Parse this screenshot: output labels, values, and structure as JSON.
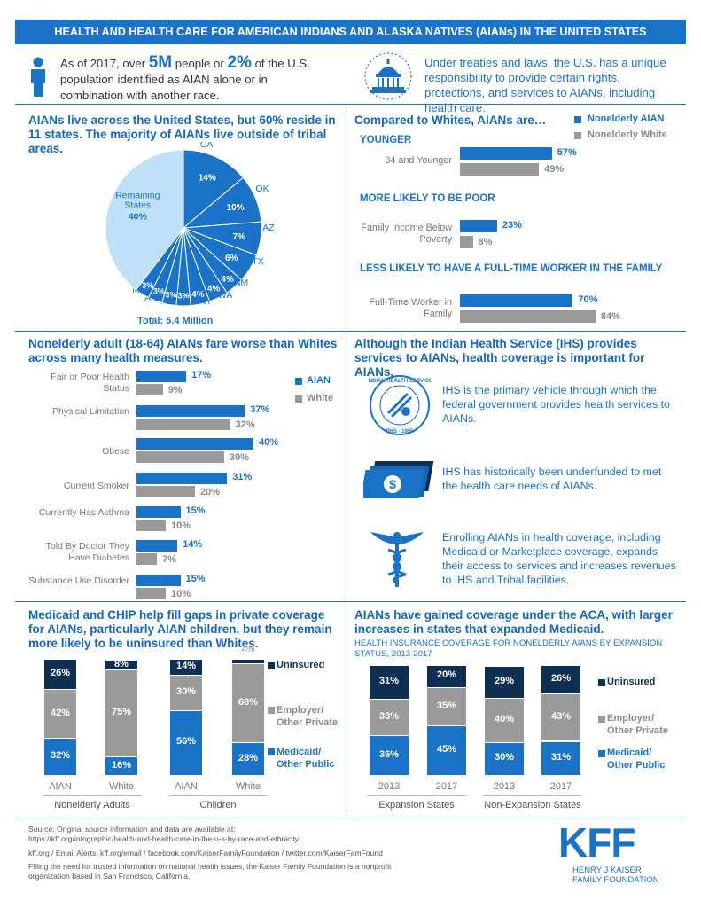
{
  "header": {
    "title": "HEALTH AND HEALTH CARE FOR AMERICAN INDIANS AND ALASKA NATIVES (AIANs) IN THE UNITED STATES"
  },
  "intro": {
    "left": {
      "prefix": "As of 2017, over ",
      "num1": "5M",
      "mid": " people or ",
      "num2": "2%",
      "suffix": " of the U.S. population identified as AIAN alone or in combination with another race."
    },
    "right": "Under treaties and laws, the U.S. has a unique responsibility to provide certain rights, protections, and services to AIANs, including health care."
  },
  "colors": {
    "aian": "#1a73c6",
    "white": "#9a9a9a",
    "light": "#bfe0f7",
    "navy": "#0c2f52"
  },
  "sections": {
    "states_title": "AIANs live across the United States, but 60% reside in 11 states. The majority of AIANs live outside of tribal areas.",
    "compare_title": "Compared to Whites, AIANs are…",
    "health_title": "Nonelderly adult (18-64) AIANs fare worse than Whites across many health measures.",
    "ihs_title": "Although the Indian Health Service (IHS) provides services to AIANs, health coverage is important for AIANs.",
    "medicaid_title": "Medicaid and CHIP help fill gaps in private coverage for AIANs, particularly AIAN children, but they remain more likely to be uninsured than Whites.",
    "aca_title": "AIANs have gained coverage under the ACA, with larger increases in states that expanded Medicaid.",
    "aca_subtitle": "HEALTH INSURANCE COVERAGE FOR NONELDERLY AIANS BY EXPANSION STATUS, 2013-2017"
  },
  "legends": {
    "nonelderly_aian": "Nonelderly AIAN",
    "nonelderly_white": "Nonelderly White",
    "aian": "AIAN",
    "white": "White",
    "uninsured": "Uninsured",
    "employer": "Employer/ Other Private",
    "medicaid": "Medicaid/ Other Public"
  },
  "compare_groups": [
    {
      "heading": "YOUNGER",
      "label": "34 and Younger"
    },
    {
      "heading": "MORE LIKELY TO BE POOR",
      "label": "Family Income Below Poverty"
    },
    {
      "heading": "LESS LIKELY TO HAVE A FULL-TIME WORKER IN THE FAMILY",
      "label": "Full-Time Worker in Family"
    }
  ],
  "health_measures": [
    "Fair or Poor Health Status",
    "Physical Limitation",
    "Obese",
    "Current Smoker",
    "Currently Has Asthma",
    "Told By Doctor They Have Diabetes",
    "Substance Use Disorder"
  ],
  "ihs_items": [
    "IHS is the primary vehicle through which the federal government provides health services to AIANs.",
    "IHS has historically been underfunded to met the health care needs of AIANs.",
    "Enrolling AIANs in health coverage, including Medicaid or Marketplace coverage, expands their access to services and increases revenues to IHS and Tribal facilities."
  ],
  "group_labels": {
    "nonelderly_adults": "Nonelderly Adults",
    "children": "Children",
    "expansion": "Expansion States",
    "non_expansion": "Non-Expansion States"
  },
  "footer": {
    "source1": "Source: Original source information and data are available at:",
    "source2": "https://kff.org/infographic/health-and-health-care-in-the-u-s-by-race-and-ethnicity.",
    "alerts": "kff.org / Email Alerts: kff.org/email / facebook.com/KaiserFamilyFoundation / twitter.com/KaiserFamFound",
    "about": "Filling the need for trusted information on national health issues, the Kaiser Family Foundation is a nonprofit organization based in San Francisco, California.",
    "logo": "KFF",
    "logo_sub1": "HENRY J KAISER",
    "logo_sub2": "FAMILY FOUNDATION"
  },
  "chart_data": [
    {
      "type": "pie",
      "total_label": "Total: 5.4 Million",
      "slices": [
        {
          "label": "CA",
          "value": 14
        },
        {
          "label": "OK",
          "value": 10
        },
        {
          "label": "AZ",
          "value": 7
        },
        {
          "label": "TX",
          "value": 6
        },
        {
          "label": "NM",
          "value": 4
        },
        {
          "label": "WA",
          "value": 4
        },
        {
          "label": "NY",
          "value": 4
        },
        {
          "label": "NC",
          "value": 3
        },
        {
          "label": "FL",
          "value": 3
        },
        {
          "label": "AK",
          "value": 3
        },
        {
          "label": "MI",
          "value": 3
        },
        {
          "label": "Remaining States",
          "value": 40
        }
      ]
    },
    {
      "type": "bar",
      "title": "Compared to Whites, AIANs are…",
      "categories": [
        "34 and Younger",
        "Family Income Below Poverty",
        "Full-Time Worker in Family"
      ],
      "series": [
        {
          "name": "Nonelderly AIAN",
          "values": [
            57,
            23,
            70
          ]
        },
        {
          "name": "Nonelderly White",
          "values": [
            49,
            8,
            84
          ]
        }
      ]
    },
    {
      "type": "bar",
      "categories": [
        "Fair or Poor Health Status",
        "Physical Limitation",
        "Obese",
        "Current Smoker",
        "Currently Has Asthma",
        "Told By Doctor They Have Diabetes",
        "Substance Use Disorder"
      ],
      "series": [
        {
          "name": "AIAN",
          "values": [
            17,
            37,
            40,
            31,
            15,
            14,
            15
          ]
        },
        {
          "name": "White",
          "values": [
            9,
            32,
            30,
            20,
            10,
            7,
            10
          ]
        }
      ]
    },
    {
      "type": "bar",
      "stacked": true,
      "categories": [
        "AIAN",
        "White",
        "AIAN",
        "White"
      ],
      "groups": [
        "Nonelderly Adults",
        "Children"
      ],
      "series": [
        {
          "name": "Medicaid/ Other Public",
          "values": [
            32,
            16,
            56,
            28
          ]
        },
        {
          "name": "Employer/ Other Private",
          "values": [
            42,
            75,
            30,
            68
          ]
        },
        {
          "name": "Uninsured",
          "values": [
            26,
            8,
            14,
            4
          ]
        }
      ]
    },
    {
      "type": "bar",
      "stacked": true,
      "title": "HEALTH INSURANCE COVERAGE FOR NONELDERLY AIANS BY EXPANSION STATUS, 2013-2017",
      "categories": [
        "2013",
        "2017",
        "2013",
        "2017"
      ],
      "groups": [
        "Expansion States",
        "Non-Expansion States"
      ],
      "series": [
        {
          "name": "Medicaid/ Other Public",
          "values": [
            36,
            45,
            30,
            31
          ]
        },
        {
          "name": "Employer/ Other Private",
          "values": [
            33,
            35,
            40,
            43
          ]
        },
        {
          "name": "Uninsured",
          "values": [
            31,
            20,
            29,
            26
          ]
        }
      ]
    }
  ]
}
